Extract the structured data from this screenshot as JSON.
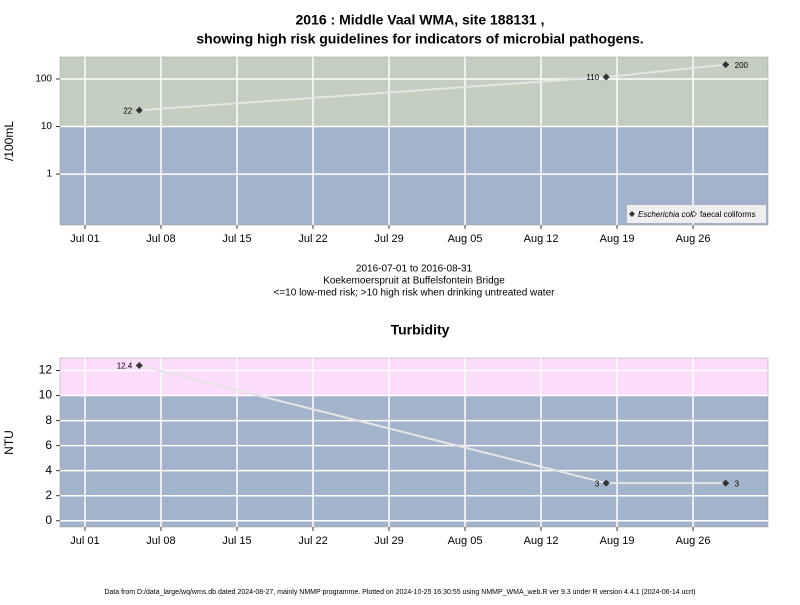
{
  "chart_data": [
    {
      "type": "line",
      "title": [
        "2016 : Middle Vaal WMA, site 188131 ,",
        "showing high risk guidelines for indicators of microbial pathogens."
      ],
      "y_label": "/100mL",
      "log_y": true,
      "x": [
        188,
        231,
        242
      ],
      "series": [
        {
          "name": "Escherichia coli",
          "color": "#333333",
          "values": [
            22,
            110,
            200
          ]
        },
        {
          "name": "faecal coliforms",
          "color": "#333333",
          "values": [
            null,
            null,
            null
          ]
        }
      ],
      "xlim": [
        180.7,
        245.9
      ],
      "xticks": [
        {
          "value": 183,
          "label": "Jul 01"
        },
        {
          "value": 190,
          "label": "Jul 08"
        },
        {
          "value": 197,
          "label": "Jul 15"
        },
        {
          "value": 204,
          "label": "Jul 22"
        },
        {
          "value": 211,
          "label": "Jul 29"
        },
        {
          "value": 218,
          "label": "Aug 05"
        },
        {
          "value": 225,
          "label": "Aug 12"
        },
        {
          "value": 232,
          "label": "Aug 19"
        },
        {
          "value": 239,
          "label": "Aug 26"
        }
      ],
      "ylim": [
        0.085,
        290
      ],
      "yticks": [
        1,
        10,
        100
      ],
      "threshold": 10,
      "band_colors": [
        "#a3b3cb",
        "#c3cdc0"
      ],
      "line_color": "#e4e4e4",
      "legend": "bottom-right",
      "notes": [
        "2016-07-01 to 2016-08-31",
        "Koekemoerspruit at Buffelsfontein Bridge",
        "<=10 low-med risk; >10 high risk when drinking untreated water"
      ]
    },
    {
      "type": "line",
      "title": [
        "Turbidity"
      ],
      "y_label": "NTU",
      "log_y": false,
      "x": [
        188,
        231,
        242
      ],
      "series": [
        {
          "name": "Turbidity",
          "color": "#333333",
          "values": [
            12.4,
            3,
            3
          ]
        }
      ],
      "xlim": [
        180.7,
        245.9
      ],
      "xticks": [
        {
          "value": 183,
          "label": "Jul 01"
        },
        {
          "value": 190,
          "label": "Jul 08"
        },
        {
          "value": 197,
          "label": "Jul 15"
        },
        {
          "value": 204,
          "label": "Jul 22"
        },
        {
          "value": 211,
          "label": "Jul 29"
        },
        {
          "value": 218,
          "label": "Aug 05"
        },
        {
          "value": 225,
          "label": "Aug 12"
        },
        {
          "value": 232,
          "label": "Aug 19"
        },
        {
          "value": 239,
          "label": "Aug 26"
        }
      ],
      "ylim": [
        -0.5,
        13
      ],
      "yticks": [
        0,
        2,
        4,
        6,
        8,
        10,
        12
      ],
      "threshold": 10,
      "band_colors": [
        "#a3b3cb",
        "#fbdcfb"
      ],
      "line_color": "#e4e4e4"
    }
  ],
  "footer": "Data from D:/data_large/wq/wms.db dated 2024-08-27, mainly NMMP programme. Plotted on 2024-10-25 16:30:55 using NMMP_WMA_web.R ver 9.3 under R version 4.4.1 (2024-06-14 ucrt)"
}
